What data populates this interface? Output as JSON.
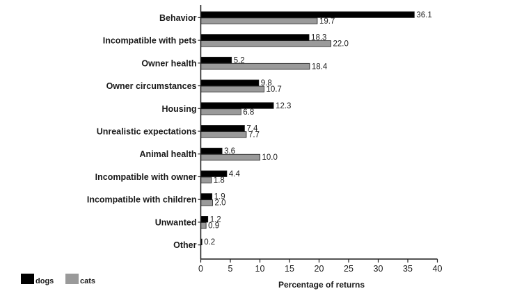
{
  "chart_data": {
    "type": "bar",
    "orientation": "horizontal",
    "categories": [
      "Behavior",
      "Incompatible with pets",
      "Owner health",
      "Owner circumstances",
      "Housing",
      "Unrealistic expectations",
      "Animal health",
      "Incompatible with owner",
      "Incompatible with children",
      "Unwanted",
      "Other"
    ],
    "series": [
      {
        "name": "dogs",
        "color": "#000000",
        "values": [
          36.1,
          18.3,
          5.2,
          9.8,
          12.3,
          7.4,
          3.6,
          4.4,
          1.9,
          1.2,
          0.2
        ]
      },
      {
        "name": "cats",
        "color": "#9a9a9a",
        "values": [
          19.7,
          22.0,
          18.4,
          10.7,
          6.8,
          7.7,
          10.0,
          1.8,
          2.0,
          0.9,
          null
        ]
      }
    ],
    "data_labels": [
      [
        "36.1",
        "18.3",
        "5.2",
        "9.8",
        "12.3",
        "7.4",
        "3.6",
        "4.4",
        "1.9",
        "1.2",
        "0.2"
      ],
      [
        "19.7",
        "22.0",
        "18.4",
        "10.7",
        "6.8",
        "7.7",
        "10.0",
        "1.8",
        "2.0",
        "0.9",
        ""
      ]
    ],
    "title": "",
    "xlabel": "Percentage of returns",
    "ylabel": "",
    "xlim": [
      0,
      40
    ],
    "xticks": [
      0,
      5,
      10,
      15,
      20,
      25,
      30,
      35,
      40
    ],
    "grid": false,
    "legend_position": "bottom-left"
  }
}
